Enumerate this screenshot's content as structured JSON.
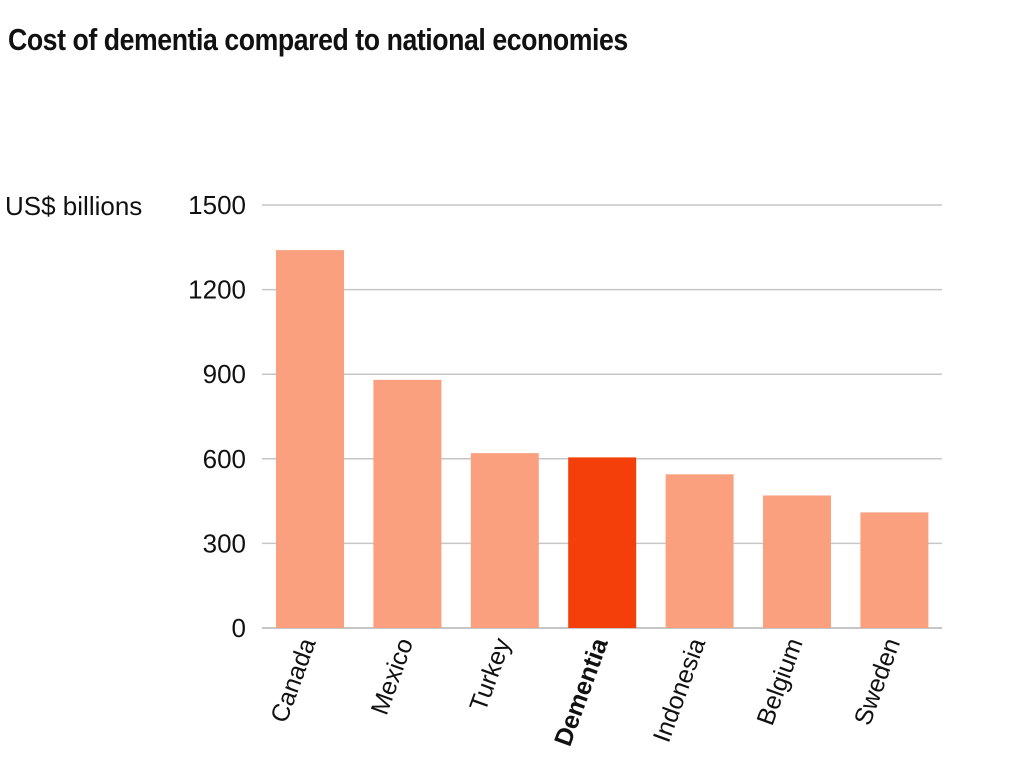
{
  "page": {
    "title": "Cost of dementia compared to national economies"
  },
  "chart_data": {
    "type": "bar",
    "title": "Cost of dementia compared to national economies",
    "ylabel": "US$ billions",
    "xlabel": "",
    "ylim": [
      0,
      1500
    ],
    "yticks": [
      0,
      300,
      600,
      900,
      1200,
      1500
    ],
    "grid": true,
    "categories": [
      "Canada",
      "Mexico",
      "Turkey",
      "Dementia",
      "Indonesia",
      "Belgium",
      "Sweden"
    ],
    "values": [
      1340,
      880,
      620,
      605,
      545,
      470,
      410
    ],
    "highlight": "Dementia",
    "colors": {
      "bar": "#fba07e",
      "highlight_bar": "#f43f0a",
      "gridline": "#c6c6c6",
      "text": "#111111"
    }
  }
}
